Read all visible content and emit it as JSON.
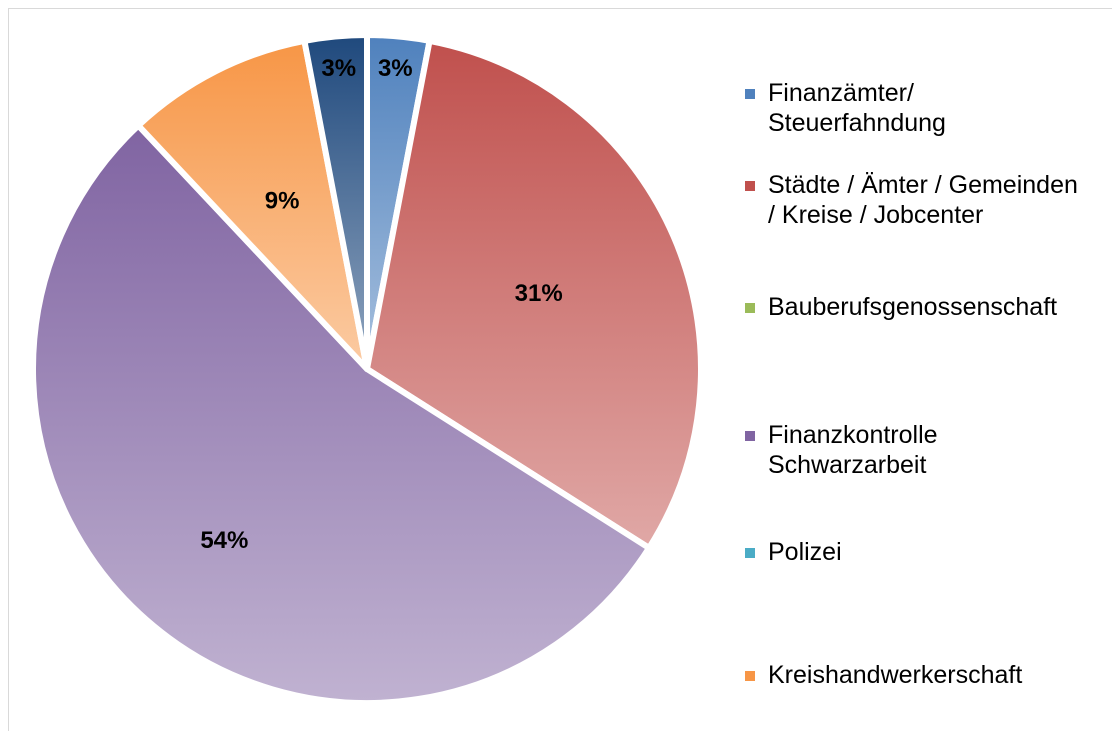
{
  "chart_data": {
    "type": "pie",
    "categories": [
      "Finanzämter/ Steuerfahndung",
      "Städte / Ämter / Gemeinden / Kreise / Jobcenter",
      "Bauberufsgenossenschaft",
      "Finanzkontrolle Schwarzarbeit",
      "Polizei",
      "Kreishandwerkerschaft",
      null
    ],
    "values": [
      3,
      31,
      0,
      54,
      0,
      9,
      3
    ],
    "value_labels": [
      "3%",
      "31%",
      null,
      "54%",
      null,
      "9%",
      "3%"
    ],
    "colors": [
      "#4f81bd",
      "#c0504d",
      "#9bbb59",
      "#8064a2",
      "#4bacc6",
      "#f79646",
      "#1f497d"
    ],
    "legend": "right"
  }
}
